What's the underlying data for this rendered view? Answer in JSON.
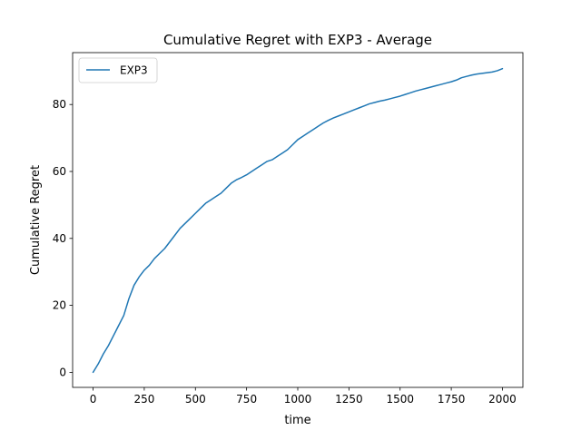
{
  "chart_data": {
    "type": "line",
    "title": "Cumulative Regret with EXP3 - Average",
    "xlabel": "time",
    "ylabel": "Cumulative Regret",
    "xlim": [
      -100,
      2100
    ],
    "ylim": [
      -4.5,
      95.5
    ],
    "xticks": [
      0,
      250,
      500,
      750,
      1000,
      1250,
      1500,
      1750,
      2000
    ],
    "yticks": [
      0,
      20,
      40,
      60,
      80
    ],
    "grid": false,
    "legend_position": "top-left",
    "series": [
      {
        "name": "EXP3",
        "color": "#1f77b4",
        "x": [
          0,
          25,
          50,
          75,
          100,
          125,
          150,
          175,
          200,
          225,
          250,
          275,
          300,
          325,
          350,
          375,
          400,
          425,
          450,
          475,
          500,
          525,
          550,
          575,
          600,
          625,
          650,
          675,
          700,
          725,
          750,
          775,
          800,
          825,
          850,
          875,
          900,
          925,
          950,
          975,
          1000,
          1025,
          1050,
          1075,
          1100,
          1125,
          1150,
          1175,
          1200,
          1225,
          1250,
          1275,
          1300,
          1325,
          1350,
          1375,
          1400,
          1425,
          1450,
          1475,
          1500,
          1525,
          1550,
          1575,
          1600,
          1625,
          1650,
          1675,
          1700,
          1725,
          1750,
          1775,
          1800,
          1825,
          1850,
          1875,
          1900,
          1925,
          1950,
          1975,
          2000
        ],
        "y": [
          0,
          2.5,
          5.5,
          8,
          11,
          14,
          17,
          22,
          26,
          28.5,
          30.5,
          32,
          34,
          35.5,
          37,
          39,
          41,
          43,
          44.5,
          46,
          47.5,
          49,
          50.5,
          51.5,
          52.5,
          53.5,
          55,
          56.5,
          57.5,
          58.2,
          59,
          60,
          61,
          62,
          63,
          63.5,
          64.5,
          65.5,
          66.5,
          68,
          69.5,
          70.5,
          71.5,
          72.5,
          73.5,
          74.5,
          75.3,
          76,
          76.6,
          77.2,
          77.8,
          78.4,
          79,
          79.6,
          80.2,
          80.6,
          81,
          81.3,
          81.7,
          82.1,
          82.5,
          83,
          83.5,
          84,
          84.4,
          84.8,
          85.2,
          85.6,
          86,
          86.4,
          86.8,
          87.3,
          88,
          88.4,
          88.8,
          89.1,
          89.3,
          89.5,
          89.7,
          90.1,
          90.7
        ]
      }
    ]
  }
}
